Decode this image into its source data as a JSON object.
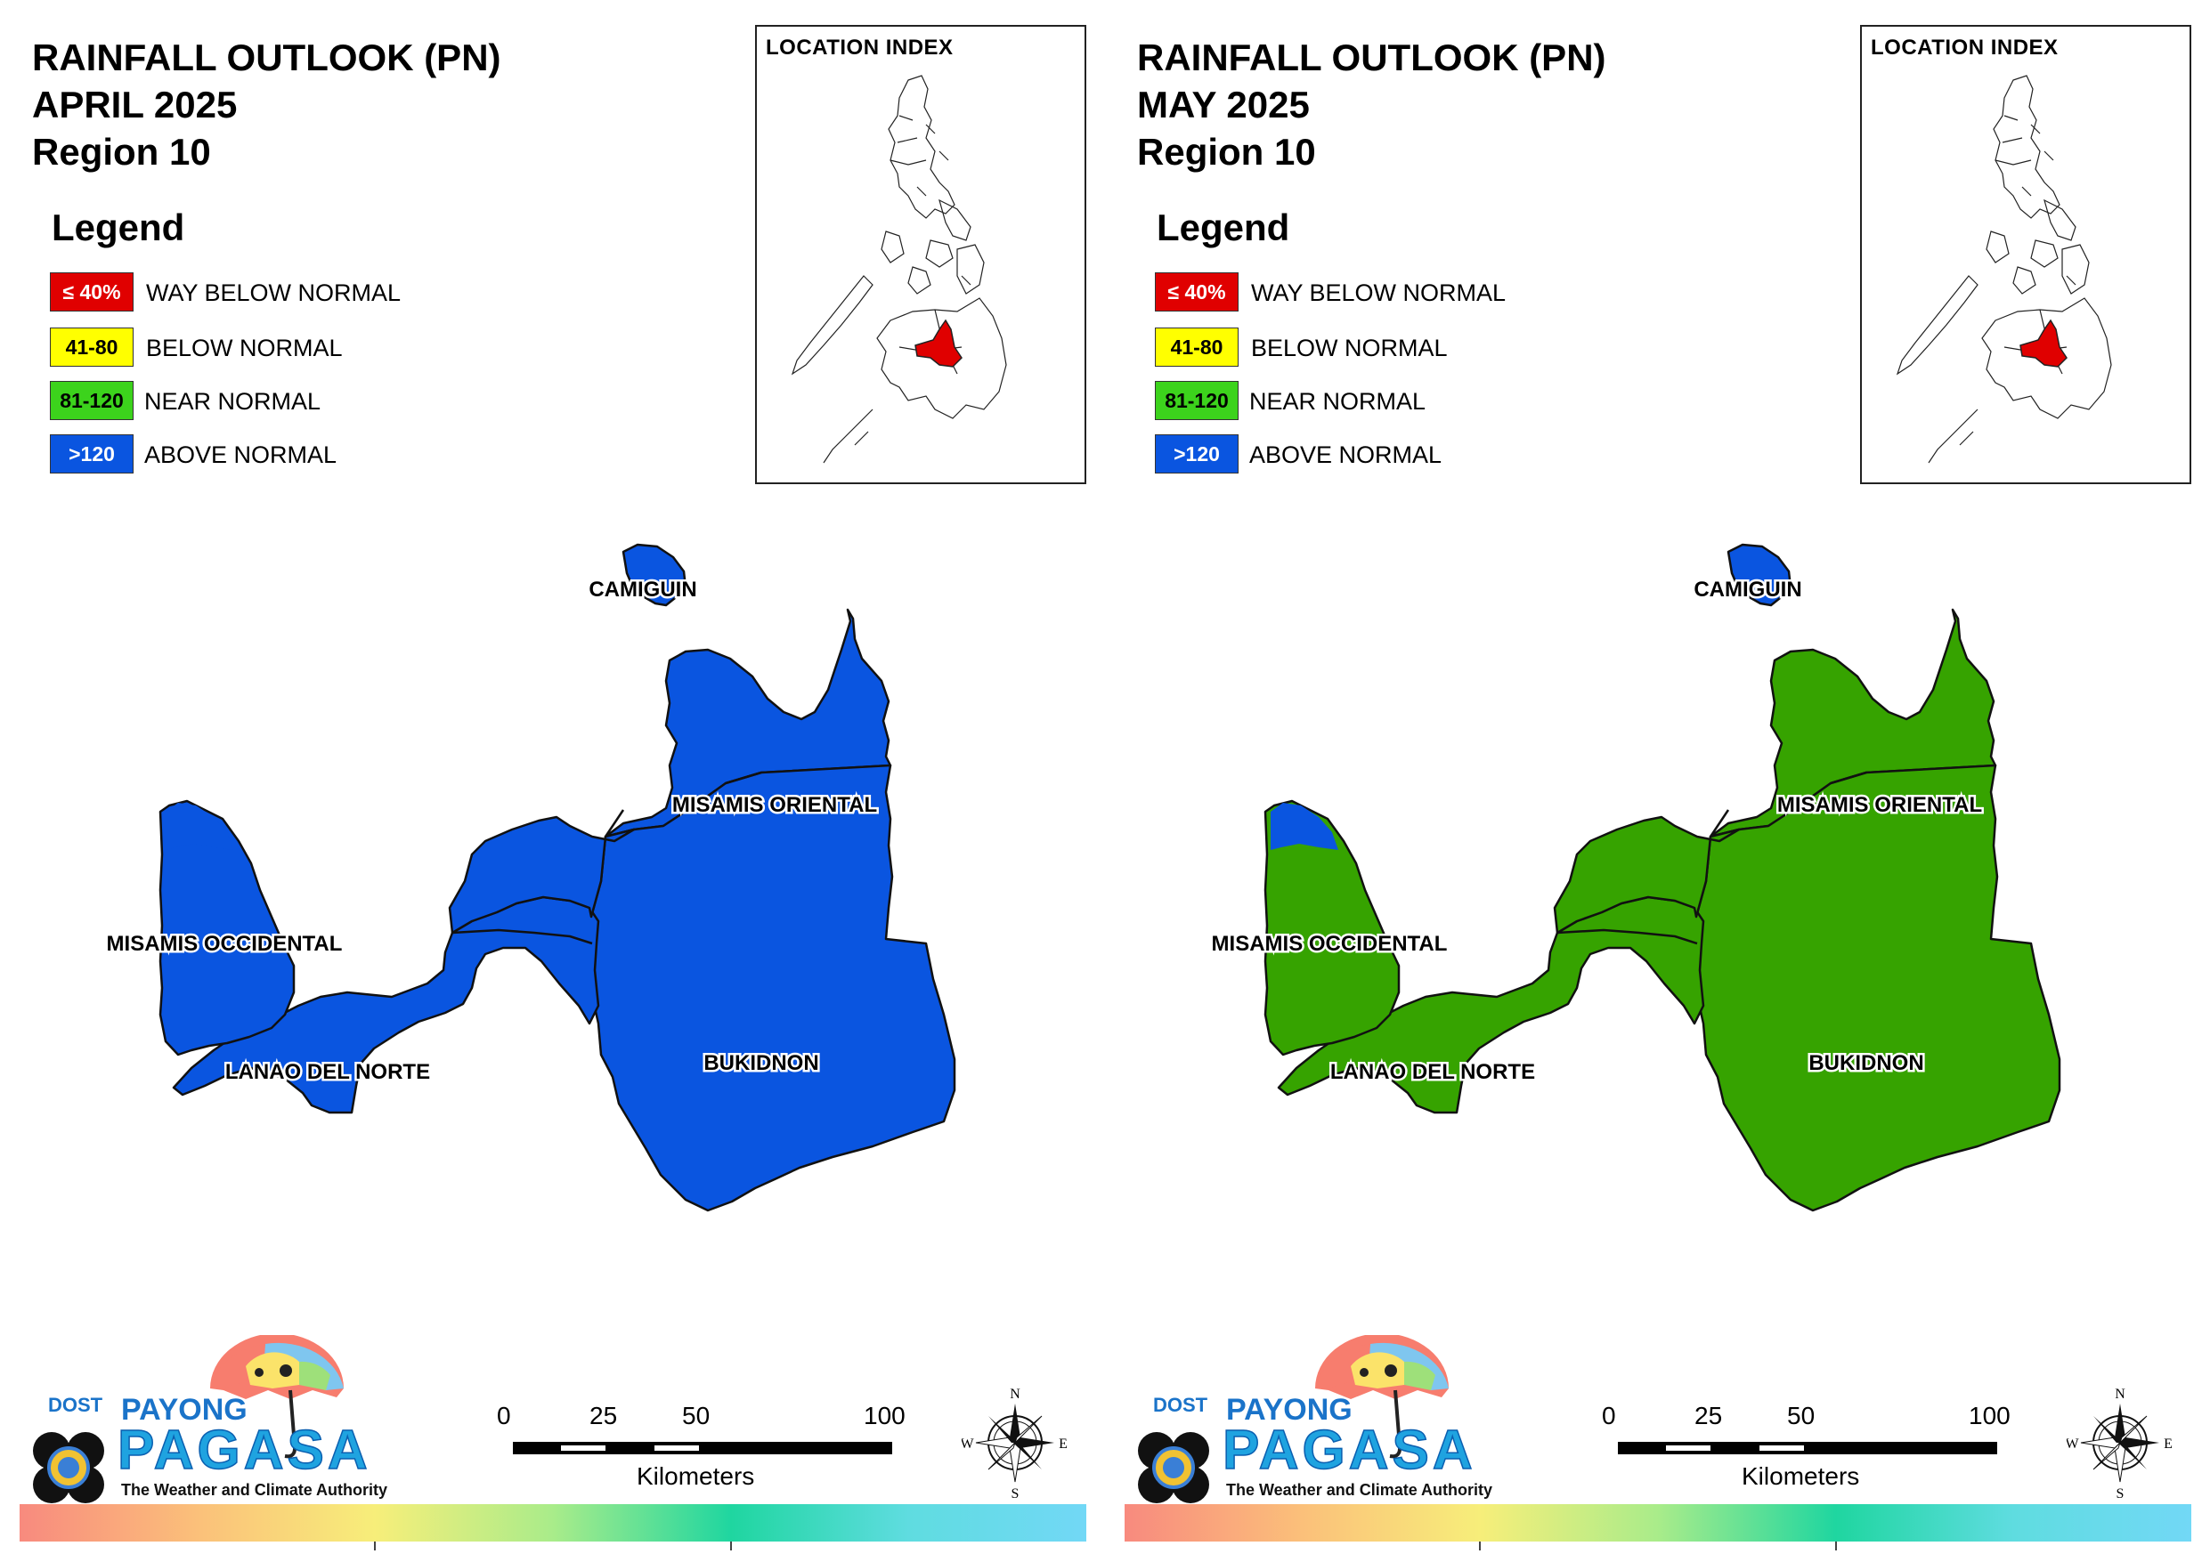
{
  "panels": [
    {
      "title_line1": "RAINFALL OUTLOOK (PN)",
      "title_line2": "APRIL 2025",
      "title_line3": "Region 10",
      "fill_color": "#0a55e0",
      "camiguin_color": "#0a55e0",
      "misocc_tip_color": "#0a55e0"
    },
    {
      "title_line1": "RAINFALL OUTLOOK (PN)",
      "title_line2": "MAY 2025",
      "title_line3": "Region 10",
      "fill_color": "#36a300",
      "camiguin_color": "#0a55e0",
      "misocc_tip_color": "#0a55e0"
    }
  ],
  "legend": {
    "title": "Legend",
    "items": [
      {
        "swatch": "≤ 40%",
        "label": "WAY BELOW NORMAL",
        "color": "#e00000",
        "text_color": "#ffffff"
      },
      {
        "swatch": "41-80",
        "label": "BELOW NORMAL",
        "color": "#ffff00",
        "text_color": "#000000"
      },
      {
        "swatch": "81-120",
        "label": "NEAR NORMAL",
        "color": "#3cd31c",
        "text_color": "#000000"
      },
      {
        "swatch": ">120",
        "label": "ABOVE NORMAL",
        "color": "#0a55e0",
        "text_color": "#ffffff"
      }
    ]
  },
  "inset": {
    "title": "LOCATION INDEX",
    "highlight_color": "#e00000"
  },
  "provinces": {
    "camiguin": "CAMIGUIN",
    "misamis_oriental": "MISAMIS ORIENTAL",
    "misamis_occidental": "MISAMIS OCCIDENTAL",
    "lanao_del_norte": "LANAO DEL NORTE",
    "bukidnon": "BUKIDNON"
  },
  "logo": {
    "dost": "DOST",
    "payong": "PAYONG",
    "pagasa": "PAGASA",
    "tagline": "The Weather and Climate Authority"
  },
  "scalebar": {
    "ticks": [
      "0",
      "25",
      "50",
      "100"
    ],
    "unit": "Kilometers"
  },
  "compass": {
    "n": "N",
    "s": "S",
    "e": "E",
    "w": "W"
  }
}
